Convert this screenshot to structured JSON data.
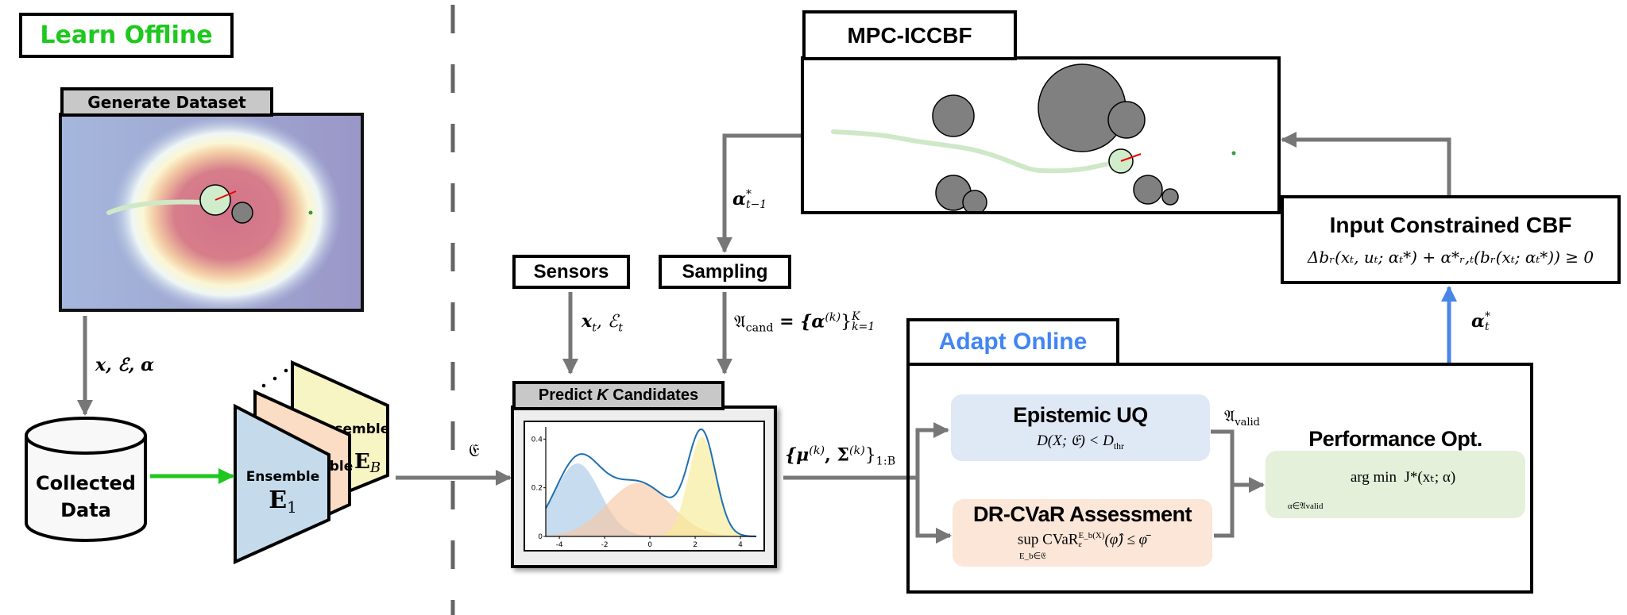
{
  "offline": {
    "title": "Learn Offline",
    "title_color": "#1ec81e",
    "dataset_tab": "Generate Dataset",
    "dataset_edge_label": "x, ℰ, α",
    "collected_line1": "Collected",
    "collected_line2": "Data",
    "ensemble_word": "Ensemble",
    "ensemble_front_symbol": "E",
    "ensemble_front_sub": "1",
    "ensemble_back_symbol": "E",
    "ensemble_back_sub": "B",
    "ensemble_edge_label": "𝔈",
    "ensemble_colors": {
      "front": "#c5dbeb",
      "middle": "#fbdcc4",
      "back": "#f8f5c4"
    },
    "arrow_color": "#1ec81e"
  },
  "online": {
    "sensors": "Sensors",
    "sensors_edge": {
      "x": "x",
      "sub1": "t",
      "sep": ", ℰ",
      "sub2": "t"
    },
    "sampling": "Sampling",
    "sampling_edge": {
      "A": "𝔄",
      "A_sub": "cand",
      "eq": " = {α",
      "sup": "(k)",
      "close": "}",
      "sup2": "K",
      "sub2": "k=1"
    },
    "prev_alpha": {
      "sym": "α",
      "sup": "*",
      "sub": "t−1"
    },
    "predict_tab": {
      "pre": "Predict ",
      "k": "K",
      "post": " Candidates"
    },
    "predict_edge": {
      "text": "{μ",
      "sup1": "(k)",
      "mid": ", Σ",
      "sup2": "(k)",
      "close": "}",
      "sub": "1:B"
    },
    "mpc_title": "MPC-ICCBF",
    "cbf_title": "Input Constrained CBF",
    "cbf_formula": "Δbᵣ(xₜ, uₜ; αₜ*) + α*ᵣ,ₜ(bᵣ(xₜ; αₜ*)) ≥ 0",
    "alpha_star": {
      "sym": "α",
      "sup": "*",
      "sub": "t"
    },
    "adapt_title": "Adapt Online",
    "adapt_title_color": "#4285f4",
    "epistemic": {
      "title": "Epistemic UQ",
      "f1": "D(X; 𝔈) < D",
      "f_sub": "thr",
      "color": "#dfe8f5"
    },
    "drcvar": {
      "title": "DR-CVaR Assessment",
      "f1": "sup CVaR",
      "f_sup": "E_b(X)",
      "f_sub": "ε",
      "f2": "(φ̂) ≤ φ̄",
      "under": "E_b∈𝔈",
      "color": "#fbe6d8"
    },
    "valid_label": {
      "A": "𝔄",
      "sub": "valid"
    },
    "performance": {
      "title": "Performance Opt.",
      "f1": "arg min  J*(xₜ; α)",
      "under": "α∈𝔄valid",
      "color": "#e4f0da"
    }
  },
  "chart_data": {
    "type": "area",
    "title": "",
    "xlabel": "",
    "ylabel": "",
    "xlim": [
      -4.6,
      4.7
    ],
    "ylim": [
      0,
      0.45
    ],
    "xticks": [
      "-4",
      "-2",
      "0",
      "2",
      "4"
    ],
    "yticks": [
      "0",
      "0.2",
      "0.4"
    ],
    "components": [
      {
        "mean": -3.2,
        "sd": 1.0,
        "peak": 0.3,
        "color": "#a9c9e6"
      },
      {
        "mean": -0.5,
        "sd": 1.4,
        "peak": 0.22,
        "color": "#f7c7a4"
      },
      {
        "mean": 2.3,
        "sd": 0.6,
        "peak": 0.41,
        "color": "#f6ec96"
      }
    ],
    "total_curve_color": "#1f6fb0",
    "grid": false
  }
}
